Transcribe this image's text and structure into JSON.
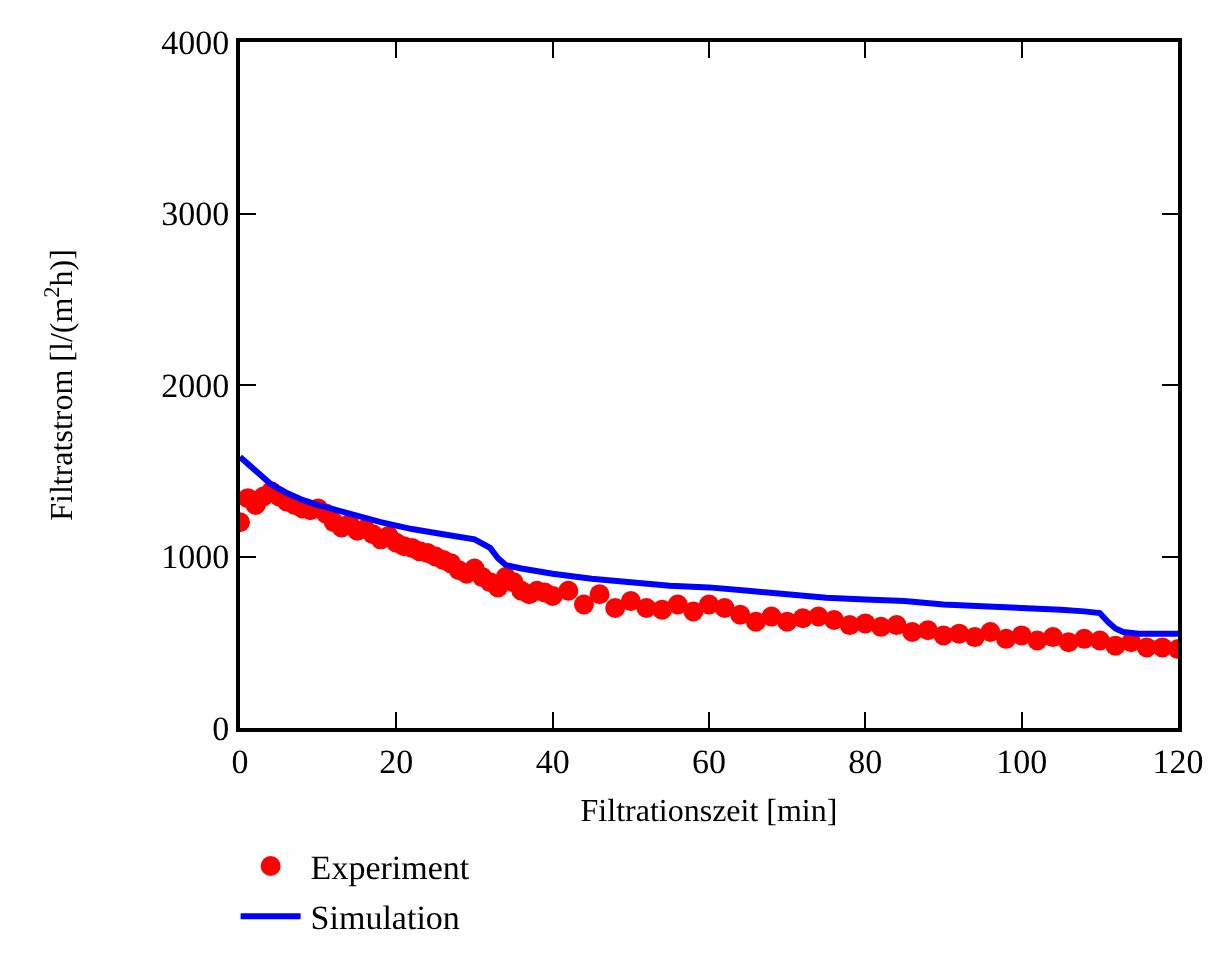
{
  "chart_data": {
    "type": "scatter",
    "xlabel": "Filtrationszeit [min]",
    "ylabel": "Filtratstrom [l/(m$^{2}$h)]",
    "xlim": [
      0,
      120
    ],
    "ylim": [
      0,
      4000
    ],
    "xticks": [
      0,
      20,
      40,
      60,
      80,
      100,
      120
    ],
    "yticks": [
      0,
      1000,
      2000,
      3000,
      4000
    ],
    "grid": false,
    "legend": "bottom left",
    "series": [
      {
        "name": "Experiment",
        "marker": "circle",
        "color": "#ff0000",
        "x": [
          0,
          1,
          2,
          3,
          4,
          5,
          6,
          7,
          8,
          9,
          10,
          11,
          12,
          13,
          14,
          15,
          16,
          17,
          18,
          19,
          20,
          21,
          22,
          23,
          24,
          25,
          26,
          27,
          28,
          29,
          30,
          31,
          32,
          33,
          34,
          35,
          36,
          37,
          38,
          39,
          40,
          42,
          44,
          46,
          48,
          50,
          52,
          54,
          56,
          58,
          60,
          62,
          64,
          66,
          68,
          70,
          72,
          74,
          76,
          78,
          80,
          82,
          84,
          86,
          88,
          90,
          92,
          94,
          96,
          98,
          100,
          102,
          104,
          106,
          108,
          110,
          112,
          114,
          116,
          118,
          120
        ],
        "values": [
          1200,
          1340,
          1300,
          1350,
          1380,
          1350,
          1320,
          1300,
          1280,
          1270,
          1280,
          1250,
          1200,
          1170,
          1190,
          1150,
          1160,
          1130,
          1100,
          1120,
          1080,
          1060,
          1050,
          1030,
          1020,
          1000,
          980,
          960,
          920,
          900,
          930,
          880,
          850,
          820,
          880,
          850,
          800,
          780,
          800,
          790,
          770,
          800,
          720,
          780,
          700,
          740,
          700,
          690,
          720,
          680,
          720,
          700,
          660,
          620,
          650,
          620,
          640,
          650,
          630,
          600,
          610,
          590,
          600,
          560,
          570,
          540,
          550,
          530,
          560,
          520,
          540,
          510,
          530,
          500,
          520,
          510,
          480,
          500,
          470,
          470,
          460
        ]
      },
      {
        "name": "Simulation",
        "type": "line",
        "marker": "none",
        "line_style": "solid",
        "color": "#0000ff",
        "x": [
          0,
          2,
          4,
          6,
          8,
          10,
          14,
          18,
          22,
          26,
          30,
          32,
          33,
          34,
          36,
          40,
          45,
          50,
          55,
          60,
          65,
          70,
          75,
          80,
          85,
          90,
          95,
          100,
          105,
          108,
          110,
          111,
          112,
          113,
          115,
          120
        ],
        "values": [
          1580,
          1500,
          1420,
          1370,
          1330,
          1300,
          1250,
          1200,
          1160,
          1130,
          1100,
          1050,
          990,
          950,
          930,
          900,
          870,
          850,
          830,
          820,
          800,
          780,
          760,
          750,
          740,
          720,
          710,
          700,
          690,
          680,
          670,
          620,
          580,
          560,
          550,
          550
        ]
      }
    ]
  }
}
